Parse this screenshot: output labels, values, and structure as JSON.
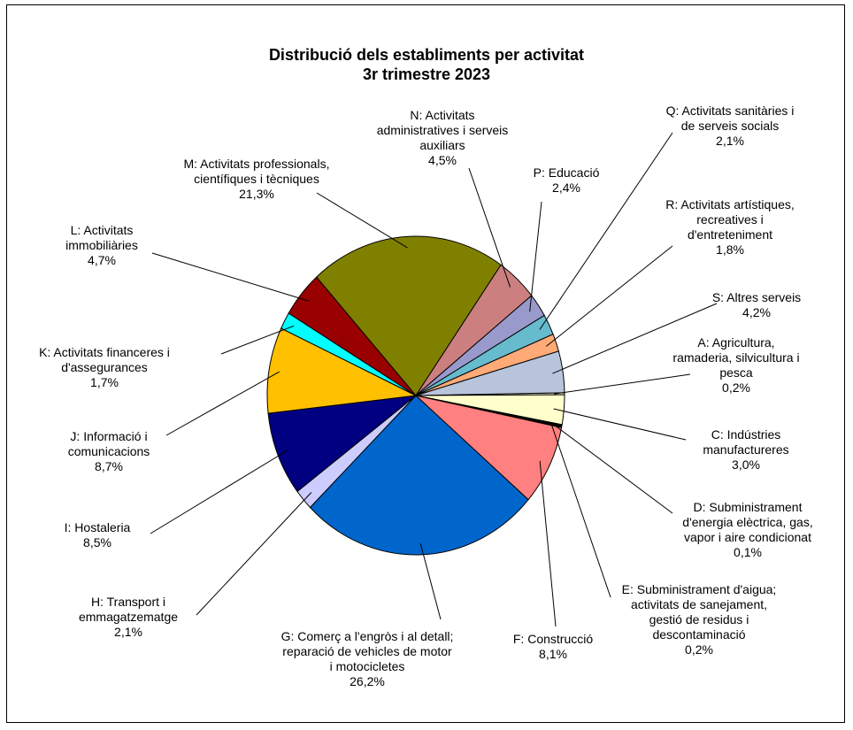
{
  "chart_data": {
    "type": "pie",
    "title": "Distribució dels establiments per activitat",
    "subtitle": "3r trimestre 2023",
    "slices": [
      {
        "label": "A: Agricultura, ramaderia, silvicultura i pesca",
        "value": 0.2,
        "value_label": "0,2%",
        "color": "#FFFFCC",
        "lines": [
          "A: Agricultura,",
          "ramaderia, silvicultura i",
          "pesca",
          "0,2%"
        ]
      },
      {
        "label": "C: Indústries manufactureres",
        "value": 3.0,
        "value_label": "3,0%",
        "color": "#FFFFCC",
        "lines": [
          "C: Indústries",
          "manufactureres",
          "3,0%"
        ]
      },
      {
        "label": "D: Subministrament d'energia elèctrica, gas, vapor i aire condicionat",
        "value": 0.1,
        "value_label": "0,1%",
        "color": "#000000",
        "lines": [
          "D: Subministrament",
          "d'energia elèctrica, gas,",
          "vapor i aire condicionat",
          "0,1%"
        ]
      },
      {
        "label": "E: Subministrament d'aigua; activitats de sanejament, gestió de residus i descontaminació",
        "value": 0.2,
        "value_label": "0,2%",
        "color": "#000000",
        "lines": [
          "E: Subministrament d'aigua;",
          "activitats de sanejament,",
          "gestió de residus i",
          "descontaminació",
          "0,2%"
        ]
      },
      {
        "label": "F: Construcció",
        "value": 8.1,
        "value_label": "8,1%",
        "color": "#FF8080",
        "lines": [
          "F: Construcció",
          "8,1%"
        ]
      },
      {
        "label": "G: Comerç a l'engròs i al detall; reparació de vehicles de motor i motocicletes",
        "value": 26.2,
        "value_label": "26,2%",
        "color": "#0066CC",
        "lines": [
          "G: Comerç  a l'engròs i al detall;",
          "reparació de vehicles de motor",
          "i motocicletes",
          "26,2%"
        ]
      },
      {
        "label": "H: Transport i emmagatzematge",
        "value": 2.1,
        "value_label": "2,1%",
        "color": "#CCCCFF",
        "lines": [
          "H: Transport i",
          "emmagatzematge",
          "2,1%"
        ]
      },
      {
        "label": "I: Hostaleria",
        "value": 8.5,
        "value_label": "8,5%",
        "color": "#000080",
        "lines": [
          "I: Hostaleria",
          "8,5%"
        ]
      },
      {
        "label": "J: Informació i comunicacions",
        "value": 8.7,
        "value_label": "8,7%",
        "color": "#FFC000",
        "lines": [
          "J: Informació i",
          "comunicacions",
          "8,7%"
        ]
      },
      {
        "label": "K: Activitats financeres i d'assegurances",
        "value": 1.7,
        "value_label": "1,7%",
        "color": "#00FFFF",
        "lines": [
          "K: Activitats financeres i",
          "d'assegurances",
          "1,7%"
        ]
      },
      {
        "label": "L: Activitats immobiliàries",
        "value": 4.7,
        "value_label": "4,7%",
        "color": "#990000",
        "lines": [
          "L: Activitats",
          "immobiliàries",
          "4,7%"
        ]
      },
      {
        "label": "M: Activitats professionals, científiques i tècniques",
        "value": 21.3,
        "value_label": "21,3%",
        "color": "#808000",
        "lines": [
          "M: Activitats professionals,",
          "científiques i tècniques",
          "21,3%"
        ]
      },
      {
        "label": "N: Activitats administratives i serveis auxiliars",
        "value": 4.5,
        "value_label": "4,5%",
        "color": "#CC7F7F",
        "lines": [
          "N: Activitats",
          "administratives i serveis",
          "auxiliars",
          "4,5%"
        ]
      },
      {
        "label": "P: Educació",
        "value": 2.4,
        "value_label": "2,4%",
        "color": "#9999CC",
        "lines": [
          "P: Educació",
          "2,4%"
        ]
      },
      {
        "label": "Q: Activitats sanitàries i de serveis socials",
        "value": 2.1,
        "value_label": "2,1%",
        "color": "#66BBCC",
        "lines": [
          "Q: Activitats sanitàries i",
          "de serveis socials",
          "2,1%"
        ]
      },
      {
        "label": "R: Activitats artístiques, recreatives i d'entreteniment",
        "value": 1.8,
        "value_label": "1,8%",
        "color": "#FFAA77",
        "lines": [
          "R: Activitats artístiques,",
          "recreatives i",
          "d'entreteniment",
          "1,8%"
        ]
      },
      {
        "label": "S: Altres serveis",
        "value": 4.2,
        "value_label": "4,2%",
        "color": "#B8C4DC",
        "lines": [
          "S: Altres serveis",
          "4,2%"
        ]
      }
    ]
  }
}
